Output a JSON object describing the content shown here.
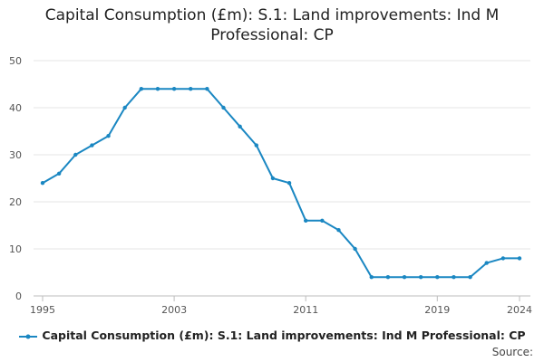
{
  "chart_data": {
    "type": "line",
    "title_lines": [
      "Capital Consumption (£m): S.1: Land improvements: Ind M",
      "Professional: CP"
    ],
    "x": [
      1995,
      1996,
      1997,
      1998,
      1999,
      2000,
      2001,
      2002,
      2003,
      2004,
      2005,
      2006,
      2007,
      2008,
      2009,
      2010,
      2011,
      2012,
      2013,
      2014,
      2015,
      2016,
      2017,
      2018,
      2019,
      2020,
      2021,
      2022,
      2023,
      2024
    ],
    "series": [
      {
        "name": "Capital Consumption (£m): S.1: Land improvements: Ind M Professional: CP",
        "color": "#1a87c2",
        "values": [
          24,
          26,
          30,
          32,
          34,
          40,
          44,
          44,
          44,
          44,
          44,
          40,
          36,
          32,
          25,
          24,
          16,
          16,
          14,
          10,
          4,
          4,
          4,
          4,
          4,
          4,
          4,
          7,
          8,
          8
        ]
      }
    ],
    "xlim": [
      1995,
      2024
    ],
    "ylim": [
      0,
      50
    ],
    "x_ticks": [
      "1995",
      "2003",
      "2011",
      "2019",
      "2024"
    ],
    "y_ticks": [
      "0",
      "10",
      "20",
      "30",
      "40",
      "50"
    ],
    "xlabel": "",
    "ylabel": "",
    "grid": "horizontal",
    "legend_position": "bottom",
    "source_label": "Source:"
  }
}
